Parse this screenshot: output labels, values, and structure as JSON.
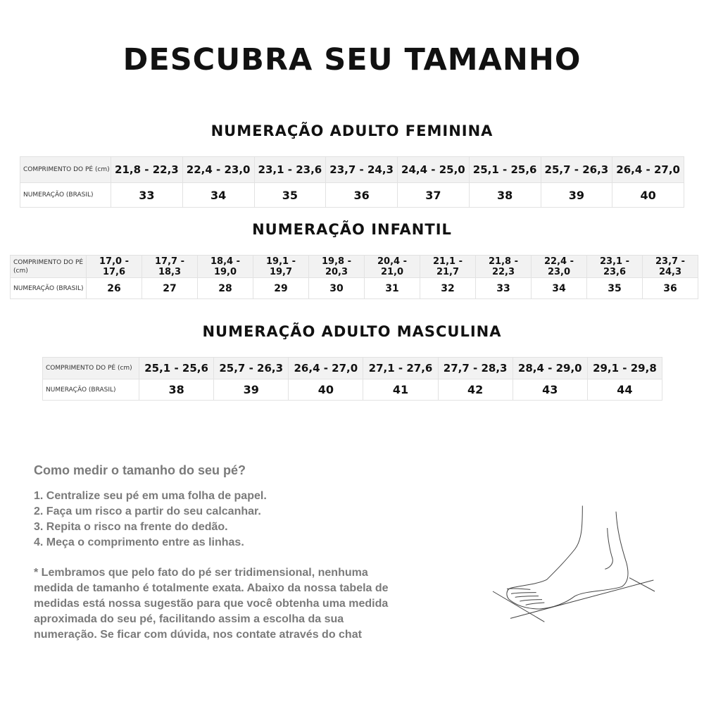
{
  "title": "DESCUBRA SEU TAMANHO",
  "label_length": "COMPRIMENTO DO PÉ (cm)",
  "label_size": "NUMERAÇÃO (BRASIL)",
  "tables": [
    {
      "heading": "NUMERAÇÃO ADULTO FEMININA",
      "lengths": [
        "21,8 - 22,3",
        "22,4 - 23,0",
        "23,1 - 23,6",
        "23,7 - 24,3",
        "24,4 - 25,0",
        "25,1 - 25,6",
        "25,7 - 26,3",
        "26,4 - 27,0"
      ],
      "sizes": [
        "33",
        "34",
        "35",
        "36",
        "37",
        "38",
        "39",
        "40"
      ]
    },
    {
      "heading": "NUMERAÇÃO INFANTIL",
      "lengths": [
        "17,0 - 17,6",
        "17,7 - 18,3",
        "18,4 - 19,0",
        "19,1 - 19,7",
        "19,8 - 20,3",
        "20,4 - 21,0",
        "21,1 - 21,7",
        "21,8 - 22,3",
        "22,4 - 23,0",
        "23,1 - 23,6",
        "23,7 - 24,3"
      ],
      "sizes": [
        "26",
        "27",
        "28",
        "29",
        "30",
        "31",
        "32",
        "33",
        "34",
        "35",
        "36"
      ]
    },
    {
      "heading": "NUMERAÇÃO ADULTO MASCULINA",
      "lengths": [
        "25,1 - 25,6",
        "25,7 - 26,3",
        "26,4 - 27,0",
        "27,1 - 27,6",
        "27,7 - 28,3",
        "28,4 - 29,0",
        "29,1 - 29,8"
      ],
      "sizes": [
        "38",
        "39",
        "40",
        "41",
        "42",
        "43",
        "44"
      ]
    }
  ],
  "how_to": {
    "heading": "Como medir o tamanho do seu pé?",
    "steps": [
      "1. Centralize seu pé em uma folha de papel.",
      "2. Faça um risco a partir do seu calcanhar.",
      "3. Repita o risco na frente do dedão.",
      "4. Meça o comprimento entre as linhas."
    ],
    "note_lines": [
      "* Lembramos que pelo fato do pé ser tridimensional, nenhuma",
      "medida de tamanho é totalmente exata. Abaixo da nossa tabela de",
      "medidas está nossa sugestão para que você obtenha uma medida",
      "aproximada do seu pé, facilitando assim a escolha da sua",
      "numeração. Se ficar com dúvida, nos contate através do chat"
    ]
  }
}
